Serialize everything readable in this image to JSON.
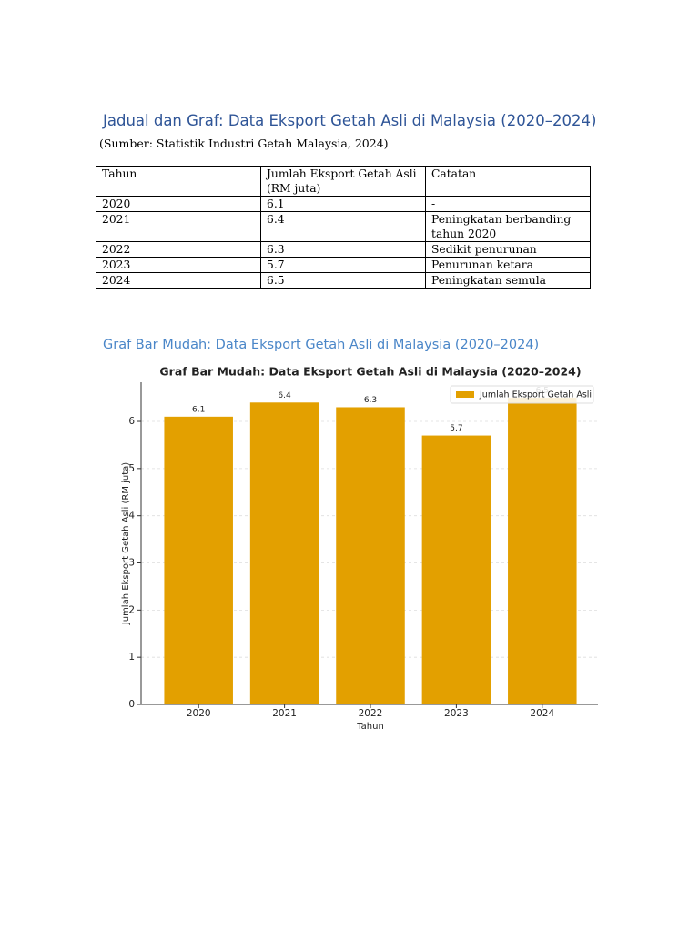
{
  "header": {
    "title": "Jadual dan Graf: Data Eksport Getah Asli di Malaysia (2020–2024)",
    "source": "(Sumber: Statistik Industri Getah Malaysia, 2024)"
  },
  "table": {
    "columns": [
      "Tahun",
      "Jumlah Eksport Getah Asli (RM juta)",
      "Catatan"
    ],
    "rows": [
      [
        "2020",
        "6.1",
        "-"
      ],
      [
        "2021",
        "6.4",
        "Peningkatan berbanding tahun 2020"
      ],
      [
        "2022",
        "6.3",
        "Sedikit penurunan"
      ],
      [
        "2023",
        "5.7",
        "Penurunan ketara"
      ],
      [
        "2024",
        "6.5",
        "Peningkatan semula"
      ]
    ]
  },
  "section_title": "Graf Bar Mudah: Data Eksport Getah Asli di Malaysia (2020–2024)",
  "chart_data": {
    "type": "bar",
    "title": "Graf Bar Mudah: Data Eksport Getah Asli di Malaysia (2020–2024)",
    "categories": [
      "2020",
      "2021",
      "2022",
      "2023",
      "2024"
    ],
    "series": [
      {
        "name": "Jumlah Eksport Getah Asli",
        "color": "#e3a000",
        "values": [
          6.1,
          6.4,
          6.3,
          5.7,
          6.5
        ]
      }
    ],
    "xlabel": "Tahun",
    "ylabel": "Jumlah Eksport Getah Asli (RM juta)",
    "ylim": [
      0,
      6.83
    ],
    "yticks": [
      0,
      1,
      2,
      3,
      4,
      5,
      6
    ],
    "grid": true,
    "legend": "upper right"
  }
}
